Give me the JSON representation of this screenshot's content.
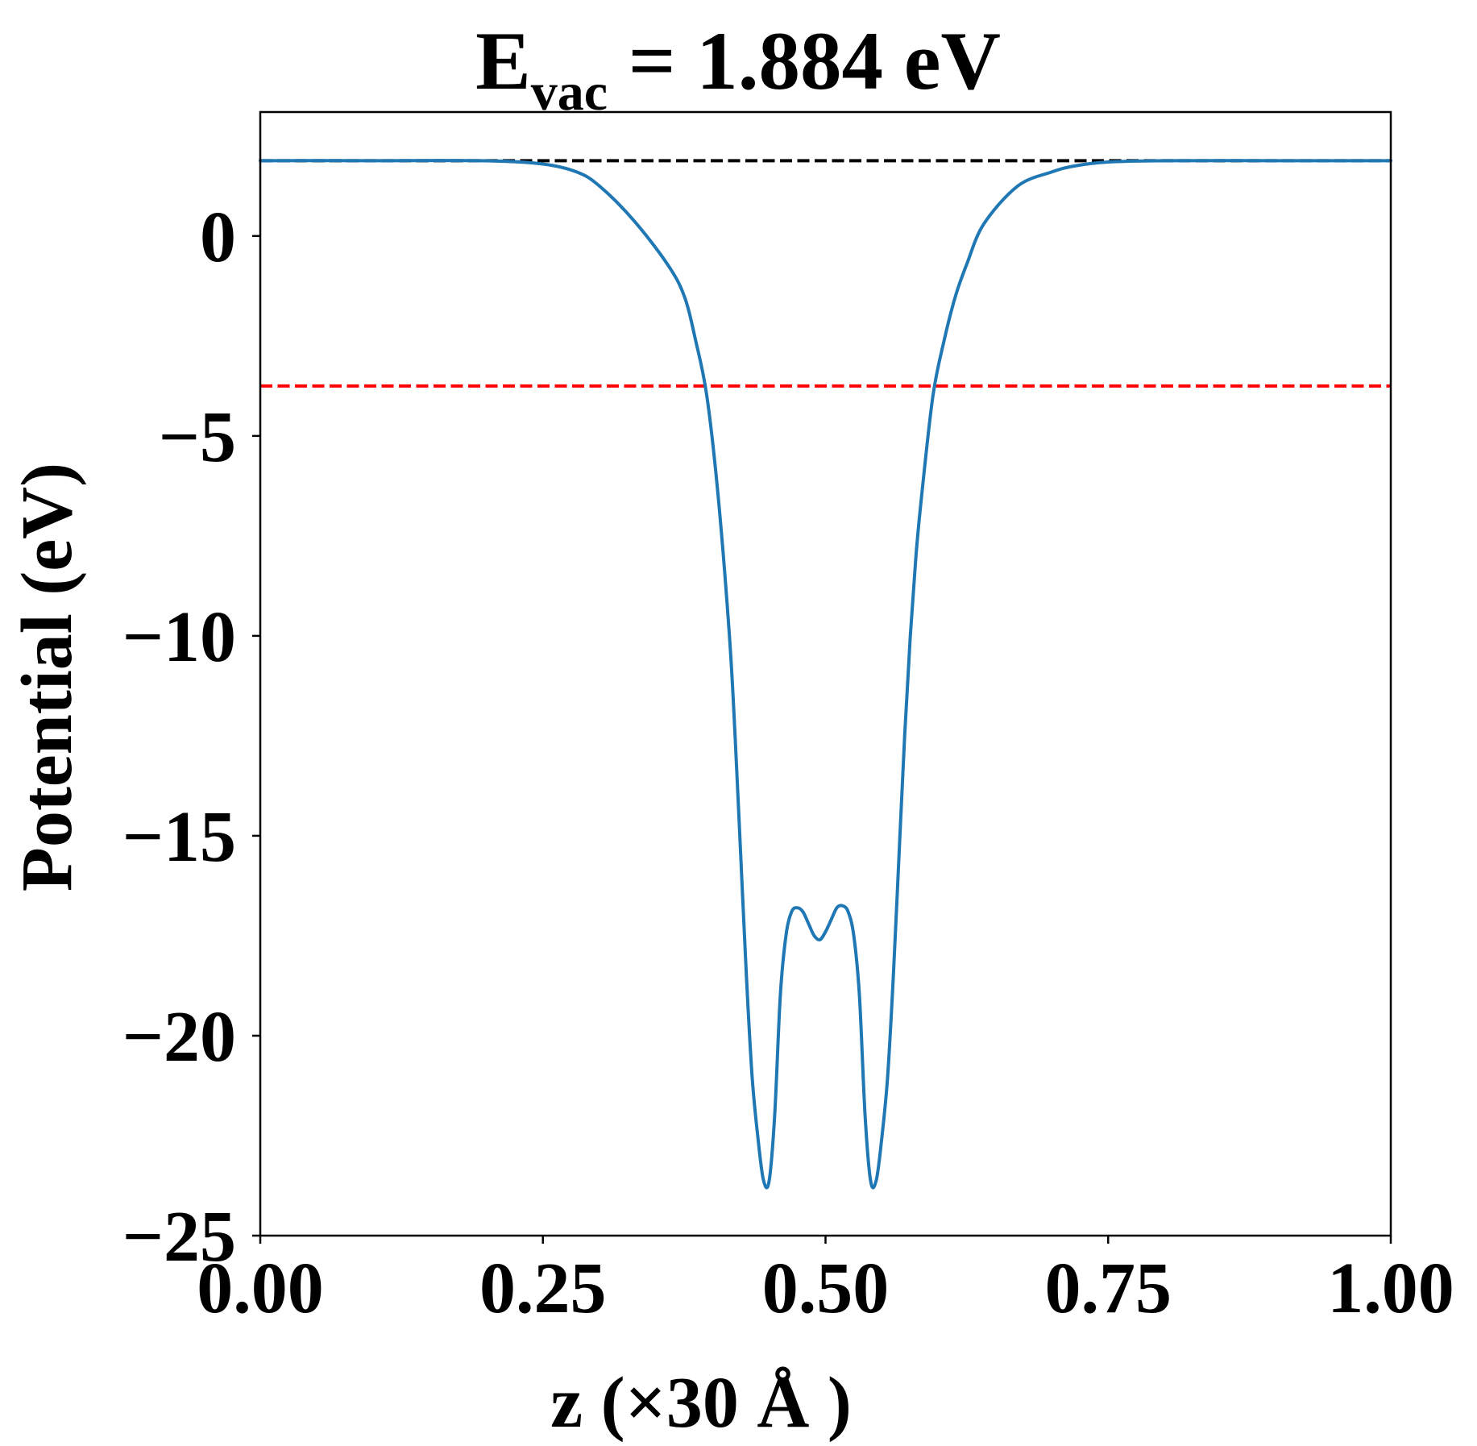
{
  "chart_data": {
    "type": "line",
    "title": {
      "prefix": "E",
      "subscript": "vac",
      "suffix": " = 1.884 eV"
    },
    "xlabel": "z (×30 Å )",
    "ylabel": "Potential (eV)",
    "xlim": [
      0.0,
      1.0
    ],
    "ylim": [
      -25.0,
      3.1
    ],
    "x_ticks": [
      0.0,
      0.25,
      0.5,
      0.75,
      1.0
    ],
    "x_tick_labels": [
      "0.00",
      "0.25",
      "0.50",
      "0.75",
      "1.00"
    ],
    "y_ticks": [
      0,
      -5,
      -10,
      -15,
      -20,
      -25
    ],
    "y_tick_labels": [
      "0",
      "−5",
      "−10",
      "−15",
      "−20",
      "−25"
    ],
    "grid": false,
    "legend": "none",
    "reference_lines": [
      {
        "y": 1.884,
        "style": "dashed",
        "color": "#000000"
      },
      {
        "y": -3.75,
        "style": "dashed",
        "color": "#ff0000"
      }
    ],
    "series": [
      {
        "color": "#1f77b4",
        "x": [
          0.0,
          0.1,
          0.2,
          0.25,
          0.28,
          0.3,
          0.33,
          0.36,
          0.375,
          0.385,
          0.395,
          0.405,
          0.415,
          0.42,
          0.425,
          0.43,
          0.435,
          0.44,
          0.445,
          0.45,
          0.455,
          0.46,
          0.465,
          0.47,
          0.475,
          0.48,
          0.485,
          0.49,
          0.495,
          0.5,
          0.505,
          0.51,
          0.515,
          0.52,
          0.525,
          0.53,
          0.535,
          0.54,
          0.545,
          0.55,
          0.555,
          0.56,
          0.565,
          0.57,
          0.575,
          0.58,
          0.585,
          0.595,
          0.605,
          0.615,
          0.625,
          0.64,
          0.67,
          0.7,
          0.72,
          0.75,
          0.8,
          0.9,
          1.0
        ],
        "y": [
          1.884,
          1.884,
          1.88,
          1.8,
          1.6,
          1.25,
          0.4,
          -0.7,
          -1.5,
          -2.6,
          -4.0,
          -6.5,
          -10.0,
          -12.5,
          -15.5,
          -18.5,
          -21.0,
          -22.5,
          -23.6,
          -23.65,
          -22.0,
          -19.0,
          -17.5,
          -16.9,
          -16.8,
          -16.9,
          -17.2,
          -17.5,
          -17.6,
          -17.4,
          -17.1,
          -16.8,
          -16.75,
          -16.9,
          -17.5,
          -19.0,
          -22.0,
          -23.65,
          -23.6,
          -22.5,
          -21.0,
          -18.5,
          -15.5,
          -12.5,
          -10.0,
          -8.0,
          -6.5,
          -4.0,
          -2.6,
          -1.5,
          -0.7,
          0.3,
          1.25,
          1.6,
          1.75,
          1.85,
          1.884,
          1.884,
          1.884
        ]
      }
    ]
  }
}
